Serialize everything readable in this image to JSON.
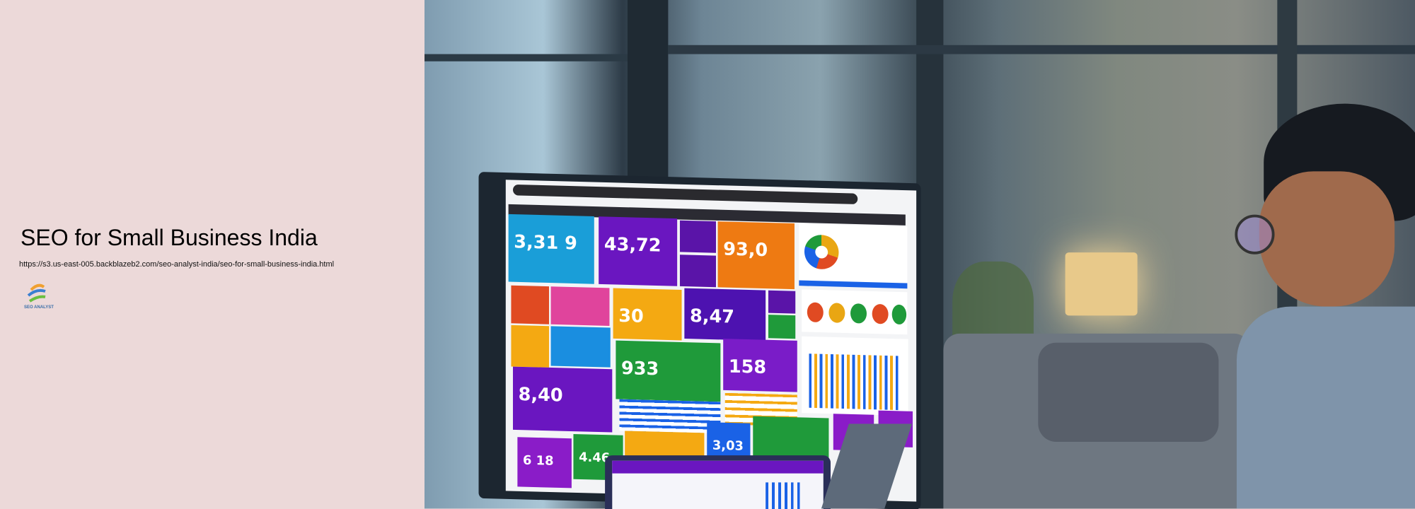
{
  "page": {
    "title": "SEO for Small Business India",
    "url": "https://s3.us-east-005.backblazeb2.com/seo-analyst-india/seo-for-small-business-india.html"
  },
  "logo": {
    "text": "SEO ANALYST",
    "colors": [
      "#f0a030",
      "#3a7fd0",
      "#6abf40"
    ]
  },
  "hero_image": {
    "description_icon": "office-analytics-dashboard-photo",
    "monitor_tiles": [
      "3,31 9",
      "43,72",
      "93,0",
      "30",
      "8,47",
      "933",
      "158",
      "8,40",
      "6 18",
      "4.46",
      "3,03"
    ],
    "colors": {
      "blue": "#1a9ed8",
      "purple": "#6a16c0",
      "orange": "#ee7a12",
      "yellow": "#f4a912",
      "green": "#1f9a3a",
      "pink": "#e0449c",
      "red": "#e04a22",
      "deepblue": "#1a62e6"
    }
  }
}
